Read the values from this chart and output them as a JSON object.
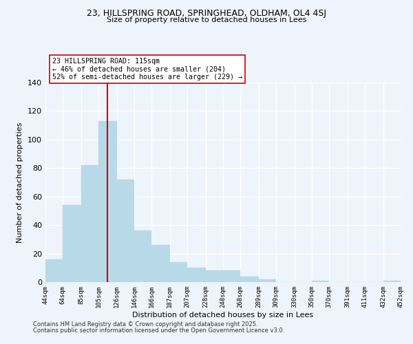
{
  "title": "23, HILLSPRING ROAD, SPRINGHEAD, OLDHAM, OL4 4SJ",
  "subtitle": "Size of property relative to detached houses in Lees",
  "xlabel": "Distribution of detached houses by size in Lees",
  "ylabel": "Number of detached properties",
  "bar_color": "#b8d9e8",
  "bar_edgecolor": "#b8d9e8",
  "vline_x": 115,
  "vline_color": "#cc0000",
  "annotation_lines": [
    "23 HILLSPRING ROAD: 115sqm",
    "← 46% of detached houses are smaller (204)",
    "52% of semi-detached houses are larger (229) →"
  ],
  "bin_edges": [
    44,
    64,
    85,
    105,
    126,
    146,
    166,
    187,
    207,
    228,
    248,
    268,
    289,
    309,
    330,
    350,
    370,
    391,
    411,
    432,
    452
  ],
  "counts": [
    16,
    54,
    82,
    113,
    72,
    36,
    26,
    14,
    10,
    8,
    8,
    4,
    2,
    0,
    0,
    1,
    0,
    0,
    0,
    1
  ],
  "ylim": [
    0,
    140
  ],
  "yticks": [
    0,
    20,
    40,
    60,
    80,
    100,
    120,
    140
  ],
  "tick_labels": [
    "44sqm",
    "64sqm",
    "85sqm",
    "105sqm",
    "126sqm",
    "146sqm",
    "166sqm",
    "187sqm",
    "207sqm",
    "228sqm",
    "248sqm",
    "268sqm",
    "289sqm",
    "309sqm",
    "330sqm",
    "350sqm",
    "370sqm",
    "391sqm",
    "411sqm",
    "432sqm",
    "452sqm"
  ],
  "footnote1": "Contains HM Land Registry data © Crown copyright and database right 2025.",
  "footnote2": "Contains public sector information licensed under the Open Government Licence v3.0.",
  "background_color": "#eef4fb",
  "grid_color": "#ffffff",
  "annotation_box_color": "#ffffff",
  "annotation_box_edgecolor": "#cc0000"
}
